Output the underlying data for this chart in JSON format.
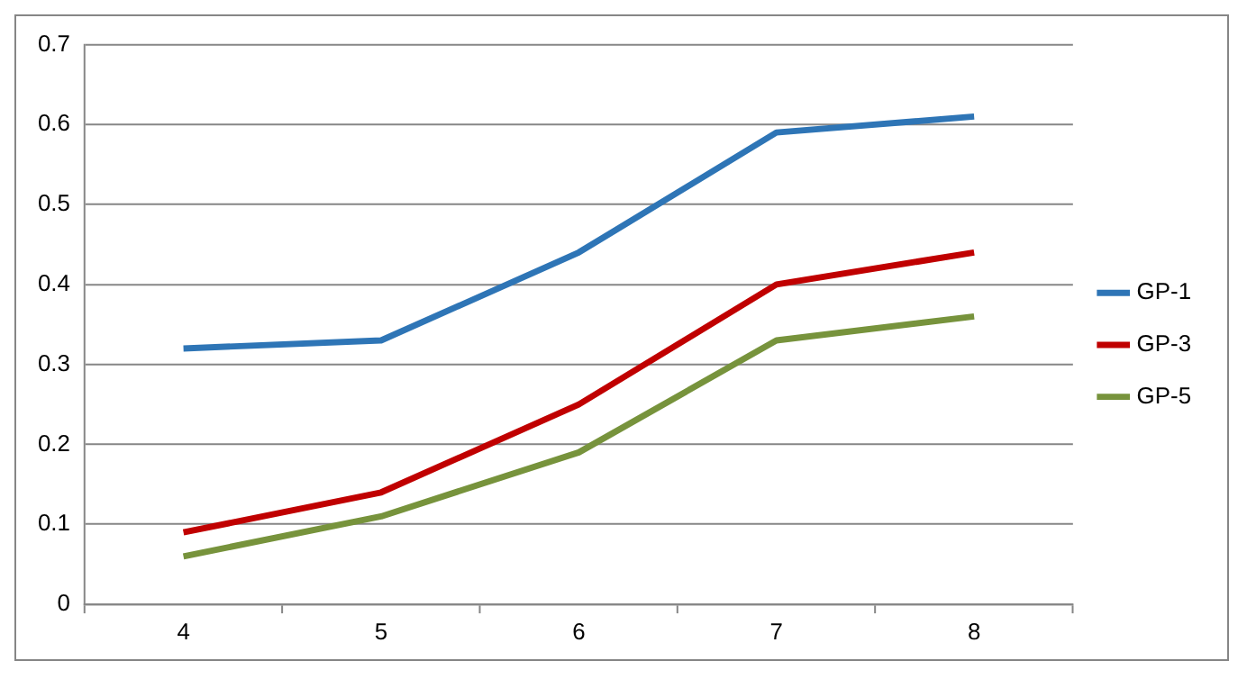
{
  "chart_data": {
    "type": "line",
    "categories": [
      "4",
      "5",
      "6",
      "7",
      "8"
    ],
    "series": [
      {
        "name": "GP-1",
        "color": "#2e75b6",
        "values": [
          0.32,
          0.33,
          0.44,
          0.59,
          0.61
        ]
      },
      {
        "name": "GP-3",
        "color": "#c00000",
        "values": [
          0.09,
          0.14,
          0.25,
          0.4,
          0.44
        ]
      },
      {
        "name": "GP-5",
        "color": "#77933c",
        "values": [
          0.06,
          0.11,
          0.19,
          0.33,
          0.36
        ]
      }
    ],
    "ylim": [
      0,
      0.7
    ],
    "yticks": [
      0,
      0.1,
      0.2,
      0.3,
      0.4,
      0.5,
      0.6,
      0.7
    ],
    "grid": "y",
    "legend": "right",
    "marker": "none",
    "line_style": "solid"
  }
}
